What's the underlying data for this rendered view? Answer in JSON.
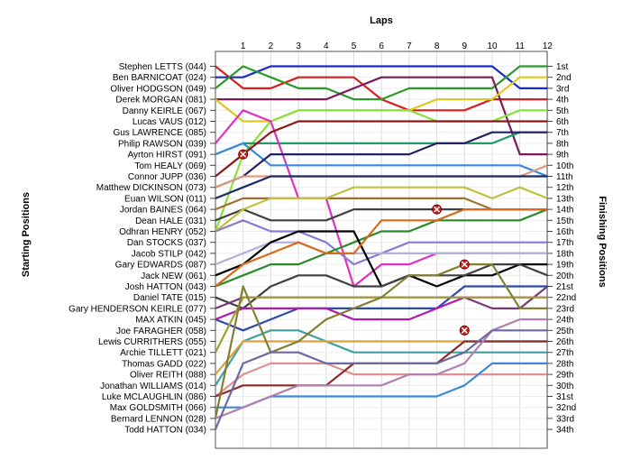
{
  "chart_data": {
    "type": "line",
    "x_title": "Laps",
    "y_left_title": "Starting Positions",
    "y_right_title": "Finishing Positions",
    "laps": [
      1,
      2,
      3,
      4,
      5,
      6,
      7,
      8,
      9,
      10,
      11,
      12
    ],
    "ylim": [
      1,
      34
    ],
    "grid": true,
    "drivers": [
      "Stephen LETTS (044)",
      "Ben BARNICOAT (024)",
      "Oliver HODGSON (049)",
      "Derek MORGAN (081)",
      "Danny KEIRLE (067)",
      "Lucas VAUS (012)",
      "Gus LAWRENCE (085)",
      "Philip RAWSON (039)",
      "Ayrton HIRST (091)",
      "Tom HEALY (069)",
      "Connor JUPP (036)",
      "Matthew DICKINSON (073)",
      "Euan WILSON (011)",
      "Jordan BAINES (064)",
      "Dean HALE (031)",
      "Odhran HENRY (052)",
      "Dan STOCKS (037)",
      "Jacob STILP (042)",
      "Gary EDWARDS (087)",
      "Jack NEW (061)",
      "Josh HATTON (043)",
      "Daniel TATE (015)",
      "Gary HENDERSON KEIRLE (077)",
      "MAX ATKIN (045)",
      "Joe FARAGHER (058)",
      "Lewis CURRITHERS (055)",
      "Archie TILLETT (021)",
      "Thomas GADD (022)",
      "Oliver REITH (088)",
      "Jonathan WILLIAMS (014)",
      "Luke MCLAUGHLIN (086)",
      "Max GOLDSMITH (066)",
      "Bernard LENNON (028)",
      "Todd HATTON (034)"
    ],
    "finishing_positions": [
      "1st",
      "2nd",
      "3rd",
      "4th",
      "5th",
      "6th",
      "7th",
      "8th",
      "9th",
      "10th",
      "11th",
      "12th",
      "13th",
      "14th",
      "15th",
      "16th",
      "17th",
      "18th",
      "19th",
      "20th",
      "21st",
      "22nd",
      "23rd",
      "24th",
      "25th",
      "26th",
      "27th",
      "28th",
      "29th",
      "30th",
      "31st",
      "32nd",
      "33rd",
      "34th"
    ],
    "series": [
      {
        "color": "#d81e1e",
        "values": [
          1,
          3,
          3,
          2,
          2,
          2,
          4,
          5,
          5,
          5,
          4,
          4,
          4
        ]
      },
      {
        "color": "#1a2acc",
        "values": [
          2,
          2,
          1,
          1,
          1,
          1,
          1,
          1,
          1,
          1,
          1,
          3,
          3
        ]
      },
      {
        "color": "#2a9a2a",
        "values": [
          3,
          1,
          2,
          3,
          3,
          4,
          4,
          3,
          3,
          3,
          3,
          1,
          1
        ]
      },
      {
        "color": "#7a1a5a",
        "values": [
          4,
          4,
          4,
          4,
          4,
          3,
          2,
          2,
          2,
          2,
          2,
          9,
          9
        ]
      },
      {
        "color": "#e0c81e",
        "values": [
          4,
          6,
          6,
          5,
          5,
          5,
          5,
          5,
          4,
          4,
          4,
          2,
          2
        ]
      },
      {
        "color": "#88e03a",
        "values": [
          16,
          9,
          6,
          5,
          5,
          5,
          5,
          5,
          6,
          6,
          6,
          5,
          5
        ]
      },
      {
        "color": "#1e9a6a",
        "values": [
          9,
          8,
          8,
          8,
          8,
          8,
          8,
          8,
          8,
          8,
          8,
          7,
          7
        ]
      },
      {
        "color": "#e030c0",
        "values": [
          8,
          5,
          6,
          13,
          13,
          21,
          19,
          19,
          18,
          18,
          18,
          18,
          18
        ]
      },
      {
        "color": "#3a8ad8",
        "values": [
          9,
          8,
          10,
          10,
          10,
          10,
          10,
          10,
          10,
          10,
          10,
          10,
          11
        ]
      },
      {
        "color": "#222266",
        "values": [
          12,
          11,
          9,
          9,
          9,
          9,
          9,
          9,
          8,
          8,
          7,
          7,
          7
        ]
      },
      {
        "color": "#8a1a1a",
        "values": [
          11,
          9,
          7,
          6,
          6,
          6,
          6,
          6,
          6,
          6,
          6,
          6,
          6
        ]
      },
      {
        "color": "#e09a7a",
        "values": [
          12,
          11,
          11,
          11,
          11,
          11,
          11,
          11,
          11,
          11,
          11,
          11,
          10
        ]
      },
      {
        "color": "#1a2a6a",
        "values": [
          13,
          12,
          11,
          11,
          11,
          11,
          11,
          11,
          11,
          11,
          11,
          11,
          11
        ]
      },
      {
        "color": "#a07030",
        "values": [
          14,
          13,
          13,
          13,
          13,
          13,
          13,
          13,
          13,
          13,
          14,
          14,
          14
        ]
      },
      {
        "color": "#404040",
        "values": [
          15,
          14,
          15,
          15,
          15,
          14,
          14,
          14,
          14,
          14,
          14,
          14,
          14
        ]
      },
      {
        "color": "#c0c040",
        "values": [
          16,
          14,
          13,
          13,
          13,
          12,
          12,
          12,
          12,
          12,
          13,
          12,
          13
        ]
      },
      {
        "color": "#8a7ad0",
        "values": [
          16,
          15,
          16,
          16,
          17,
          19,
          18,
          17,
          17,
          17,
          17,
          17,
          17
        ]
      },
      {
        "color": "#b0b0d8",
        "values": [
          19,
          18,
          17,
          17,
          18,
          18,
          18,
          18,
          18,
          18,
          18,
          18,
          18
        ]
      },
      {
        "color": "#2a8a2a",
        "values": [
          21,
          20,
          19,
          19,
          18,
          17,
          16,
          16,
          15,
          15,
          15,
          15,
          14
        ]
      },
      {
        "color": "#000000",
        "values": [
          20,
          19,
          17,
          16,
          16,
          16,
          21,
          20,
          21,
          20,
          20,
          19,
          19
        ]
      },
      {
        "color": "#d86a1a",
        "values": [
          21,
          19,
          18,
          17,
          18,
          18,
          15,
          15,
          15,
          14,
          14,
          14,
          14
        ]
      },
      {
        "color": "#404040",
        "values": [
          22,
          23,
          21,
          20,
          20,
          21,
          21,
          20,
          20,
          20,
          19,
          19,
          20
        ]
      },
      {
        "color": "#7a3a7a",
        "values": [
          23,
          22,
          22,
          22,
          22,
          22,
          22,
          22,
          22,
          22,
          23,
          23,
          21
        ]
      },
      {
        "color": "#2a4ab0",
        "values": [
          24,
          25,
          24,
          23,
          23,
          23,
          23,
          23,
          23,
          21,
          21,
          21,
          21
        ]
      },
      {
        "color": "#b01ab0",
        "values": [
          24,
          23,
          23,
          23,
          23,
          24,
          24,
          24,
          23,
          22,
          22,
          22,
          22
        ]
      },
      {
        "color": "#a0a030",
        "values": [
          27,
          22,
          22,
          22,
          22,
          22,
          22,
          22,
          22,
          22,
          22,
          22,
          22
        ]
      },
      {
        "color": "#40a0a0",
        "values": [
          30,
          26,
          25,
          25,
          26,
          27,
          27,
          27,
          27,
          27,
          27,
          27,
          27
        ]
      },
      {
        "color": "#e0a040",
        "values": [
          29,
          26,
          26,
          26,
          26,
          26,
          26,
          26,
          26,
          26,
          26,
          26,
          26
        ]
      },
      {
        "color": "#e09090",
        "values": [
          31,
          29,
          28,
          28,
          28,
          29,
          29,
          29,
          29,
          29,
          29,
          29,
          29
        ]
      },
      {
        "color": "#8a2a2a",
        "values": [
          31,
          30,
          30,
          30,
          30,
          28,
          28,
          28,
          28,
          26,
          26,
          26,
          26
        ]
      },
      {
        "color": "#3a8ad8",
        "values": [
          32,
          32,
          31,
          31,
          31,
          31,
          31,
          31,
          31,
          30,
          28,
          28,
          28
        ]
      },
      {
        "color": "#808030",
        "values": [
          33,
          21,
          27,
          26,
          24,
          23,
          22,
          20,
          20,
          19,
          19,
          23,
          23
        ]
      },
      {
        "color": "#b080b0",
        "values": [
          33,
          32,
          31,
          30,
          30,
          30,
          30,
          29,
          29,
          28,
          25,
          24,
          24
        ]
      },
      {
        "color": "#6a6aa0",
        "values": [
          34,
          28,
          27,
          27,
          28,
          28,
          28,
          28,
          28,
          27,
          25,
          25,
          25
        ]
      }
    ],
    "markers": [
      {
        "lap": 1,
        "position": 9
      },
      {
        "lap": 8,
        "position": 14
      },
      {
        "lap": 9,
        "position": 19
      },
      {
        "lap": 9,
        "position": 25
      }
    ]
  }
}
